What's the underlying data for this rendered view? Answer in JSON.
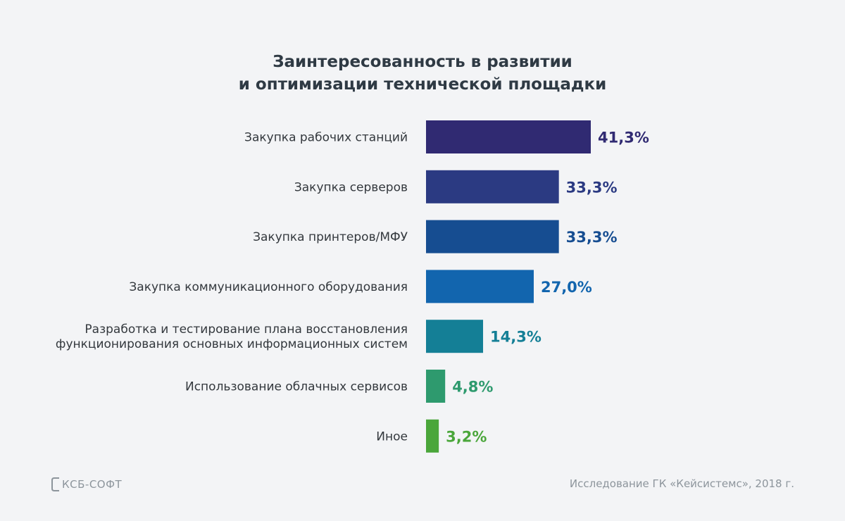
{
  "chart_data": {
    "type": "bar",
    "orientation": "horizontal",
    "title": [
      "Заинтересованность в развитии",
      "и оптимизации технической площадки"
    ],
    "categories": [
      [
        "Закупка рабочих станций"
      ],
      [
        "Закупка серверов"
      ],
      [
        "Закупка принтеров/МФУ"
      ],
      [
        "Закупка коммуникационного оборудования"
      ],
      [
        "Разработка и тестирование плана восстановления",
        "функционирования основных информационных систем"
      ],
      [
        "Использование облачных сервисов"
      ],
      [
        "Иное"
      ]
    ],
    "values": [
      41.3,
      33.3,
      33.3,
      27.0,
      14.3,
      4.8,
      3.2
    ],
    "value_labels": [
      "41,3%",
      "33,3%",
      "33,3%",
      "27,0%",
      "14,3%",
      "4,8%",
      "3,2%"
    ],
    "unit": "%",
    "colors": [
      "#302a72",
      "#2b3a82",
      "#164d91",
      "#1265ae",
      "#147f96",
      "#2e9a6e",
      "#4aa63a"
    ],
    "grid": false,
    "legend": "none"
  },
  "footer": {
    "logo_text": "КСБ-СОФТ",
    "source": "Исследование ГК «Кейсистемс», 2018 г."
  }
}
